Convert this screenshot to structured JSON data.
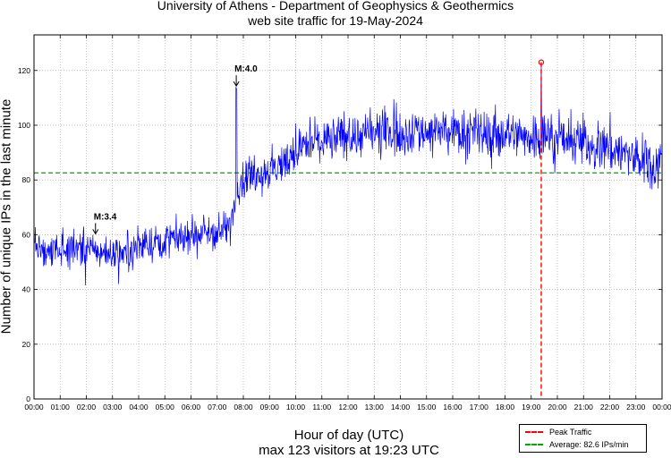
{
  "chart_data": {
    "type": "line",
    "title": "University of Athens - Department of Geophysics & Geothermics",
    "subtitle": "web site traffic for 19-May-2024",
    "xlabel": "Hour of day (UTC)",
    "footer": "max 123 visitors at 19:23 UTC",
    "ylabel": "Number of unique IPs in the last minute",
    "xlim": [
      0,
      24
    ],
    "ylim": [
      0,
      133
    ],
    "x_tick_labels": [
      "00:00",
      "01:00",
      "02:00",
      "03:00",
      "04:00",
      "05:00",
      "06:00",
      "07:00",
      "08:00",
      "09:00",
      "10:00",
      "11:00",
      "12:00",
      "13:00",
      "14:00",
      "15:00",
      "16:00",
      "17:00",
      "18:00",
      "19:00",
      "20:00",
      "21:00",
      "22:00",
      "23:00",
      "00:00"
    ],
    "y_ticks": [
      0,
      20,
      40,
      60,
      80,
      100,
      120
    ],
    "grid": true,
    "series": [
      {
        "name": "visitors",
        "color": "#0000ff",
        "trend": [
          {
            "x": 0.0,
            "y": 56
          },
          {
            "x": 1.0,
            "y": 55
          },
          {
            "x": 2.0,
            "y": 55
          },
          {
            "x": 2.5,
            "y": 54
          },
          {
            "x": 3.0,
            "y": 53
          },
          {
            "x": 4.0,
            "y": 56
          },
          {
            "x": 5.0,
            "y": 58
          },
          {
            "x": 6.0,
            "y": 60
          },
          {
            "x": 7.0,
            "y": 61
          },
          {
            "x": 7.5,
            "y": 63
          },
          {
            "x": 7.75,
            "y": 78
          },
          {
            "x": 8.2,
            "y": 82
          },
          {
            "x": 9.0,
            "y": 83
          },
          {
            "x": 9.5,
            "y": 86
          },
          {
            "x": 10.0,
            "y": 90
          },
          {
            "x": 10.6,
            "y": 94
          },
          {
            "x": 11.0,
            "y": 95
          },
          {
            "x": 12.0,
            "y": 96
          },
          {
            "x": 13.0,
            "y": 97
          },
          {
            "x": 14.0,
            "y": 98
          },
          {
            "x": 15.0,
            "y": 98
          },
          {
            "x": 16.0,
            "y": 97
          },
          {
            "x": 17.0,
            "y": 97
          },
          {
            "x": 18.0,
            "y": 97
          },
          {
            "x": 19.0,
            "y": 96
          },
          {
            "x": 19.5,
            "y": 96
          },
          {
            "x": 20.0,
            "y": 95
          },
          {
            "x": 21.0,
            "y": 94
          },
          {
            "x": 21.5,
            "y": 93
          },
          {
            "x": 22.0,
            "y": 92
          },
          {
            "x": 23.0,
            "y": 88
          },
          {
            "x": 23.5,
            "y": 86
          },
          {
            "x": 24.0,
            "y": 87
          }
        ],
        "noise_amplitude": [
          {
            "x": 0,
            "a": 4
          },
          {
            "x": 7.5,
            "a": 4
          },
          {
            "x": 9.5,
            "a": 5
          },
          {
            "x": 24,
            "a": 6
          }
        ]
      }
    ],
    "peak": {
      "x": 19.383,
      "y": 123,
      "label": "Peak Traffic",
      "color": "#ff0000"
    },
    "average": {
      "y": 82.6,
      "label": "Average: 82.6 IPs/min",
      "color": "#00aa00"
    },
    "annotations": [
      {
        "text": "M:3.4",
        "x": 2.35,
        "y": 60
      },
      {
        "text": "M:4.0",
        "x": 7.73,
        "y": 114
      }
    ]
  }
}
